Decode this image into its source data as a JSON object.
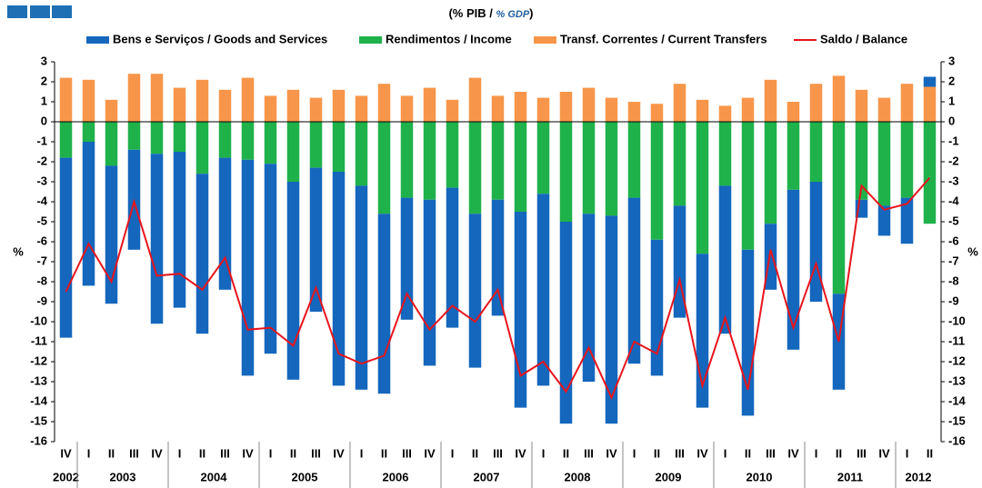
{
  "chart_data": {
    "type": "bar",
    "title_parts": [
      "(% PIB / ",
      "% GDP",
      ")"
    ],
    "y_label": "%",
    "y2_label": "%",
    "stacked": true,
    "categories": [
      "IV",
      "I",
      "II",
      "III",
      "IV",
      "I",
      "II",
      "III",
      "IV",
      "I",
      "II",
      "III",
      "IV",
      "I",
      "II",
      "III",
      "IV",
      "I",
      "II",
      "III",
      "IV",
      "I",
      "II",
      "III",
      "IV",
      "I",
      "II",
      "III",
      "IV",
      "I",
      "II",
      "III",
      "IV",
      "I",
      "II",
      "III",
      "IV",
      "I",
      "II"
    ],
    "years": [
      "2002",
      "2003",
      "2004",
      "2005",
      "2006",
      "2007",
      "2008",
      "2009",
      "2010",
      "2011",
      "2012"
    ],
    "series": [
      {
        "name": "Bens e Serviços / Goods and Services",
        "color": "#1467bd",
        "type": "bar",
        "values": [
          -9.0,
          -7.2,
          -6.9,
          -5.0,
          -8.5,
          -7.8,
          -8.0,
          -6.6,
          -10.8,
          -9.5,
          -9.9,
          -7.2,
          -10.7,
          -10.2,
          -9.0,
          -6.1,
          -8.3,
          -7.0,
          -7.7,
          -5.8,
          -9.8,
          -9.6,
          -10.1,
          -8.4,
          -10.4,
          -8.3,
          -6.8,
          -5.6,
          -7.7,
          -7.4,
          -8.3,
          -3.3,
          -8.0,
          -6.0,
          -4.8,
          -0.9,
          -1.5,
          -2.3,
          0.5
        ]
      },
      {
        "name": "Rendimentos / Income",
        "color": "#1fb24b",
        "type": "bar",
        "values": [
          -1.8,
          -1.0,
          -2.2,
          -1.4,
          -1.6,
          -1.5,
          -2.6,
          -1.8,
          -1.9,
          -2.1,
          -3.0,
          -2.3,
          -2.5,
          -3.2,
          -4.6,
          -3.8,
          -3.9,
          -3.3,
          -4.6,
          -3.9,
          -4.5,
          -3.6,
          -5.0,
          -4.6,
          -4.7,
          -3.8,
          -5.9,
          -4.2,
          -6.6,
          -3.2,
          -6.4,
          -5.1,
          -3.4,
          -3.0,
          -8.6,
          -3.9,
          -4.2,
          -3.8,
          -5.1
        ]
      },
      {
        "name": "Transf. Correntes / Current Transfers",
        "color": "#f7964a",
        "type": "bar",
        "values": [
          2.2,
          2.1,
          1.1,
          2.4,
          2.4,
          1.7,
          2.1,
          1.6,
          2.2,
          1.3,
          1.6,
          1.2,
          1.6,
          1.3,
          1.9,
          1.3,
          1.7,
          1.1,
          2.2,
          1.3,
          1.5,
          1.2,
          1.5,
          1.7,
          1.2,
          1.0,
          0.9,
          1.9,
          1.1,
          0.8,
          1.2,
          2.1,
          1.0,
          1.9,
          2.3,
          1.6,
          1.2,
          1.9,
          1.75
        ]
      },
      {
        "name": "Saldo / Balance",
        "color": "#e8141b",
        "type": "line",
        "values": [
          -8.5,
          -6.1,
          -8.0,
          -4.0,
          -7.7,
          -7.6,
          -8.4,
          -6.8,
          -10.4,
          -10.3,
          -11.2,
          -8.3,
          -11.6,
          -12.1,
          -11.7,
          -8.6,
          -10.4,
          -9.2,
          -10.0,
          -8.4,
          -12.7,
          -12.0,
          -13.5,
          -11.3,
          -13.8,
          -11.0,
          -11.6,
          -7.9,
          -13.2,
          -9.8,
          -13.4,
          -6.4,
          -10.3,
          -7.1,
          -11.0,
          -3.2,
          -4.4,
          -4.1,
          -2.8
        ]
      }
    ],
    "ylim": [
      -16,
      3
    ],
    "yticks": [
      -16,
      -15,
      -14,
      -13,
      -12,
      -11,
      -10,
      -9,
      -8,
      -7,
      -6,
      -5,
      -4,
      -3,
      -2,
      -1,
      0,
      1,
      2,
      3
    ],
    "y2lim": [
      -16,
      3
    ],
    "y2ticks": [
      -16,
      -15,
      -14,
      -13,
      -12,
      -11,
      -10,
      -9,
      -8,
      -7,
      -6,
      -5,
      -4,
      -3,
      -2,
      -1,
      0,
      1,
      2,
      3
    ],
    "grid": false,
    "legend": "top"
  }
}
